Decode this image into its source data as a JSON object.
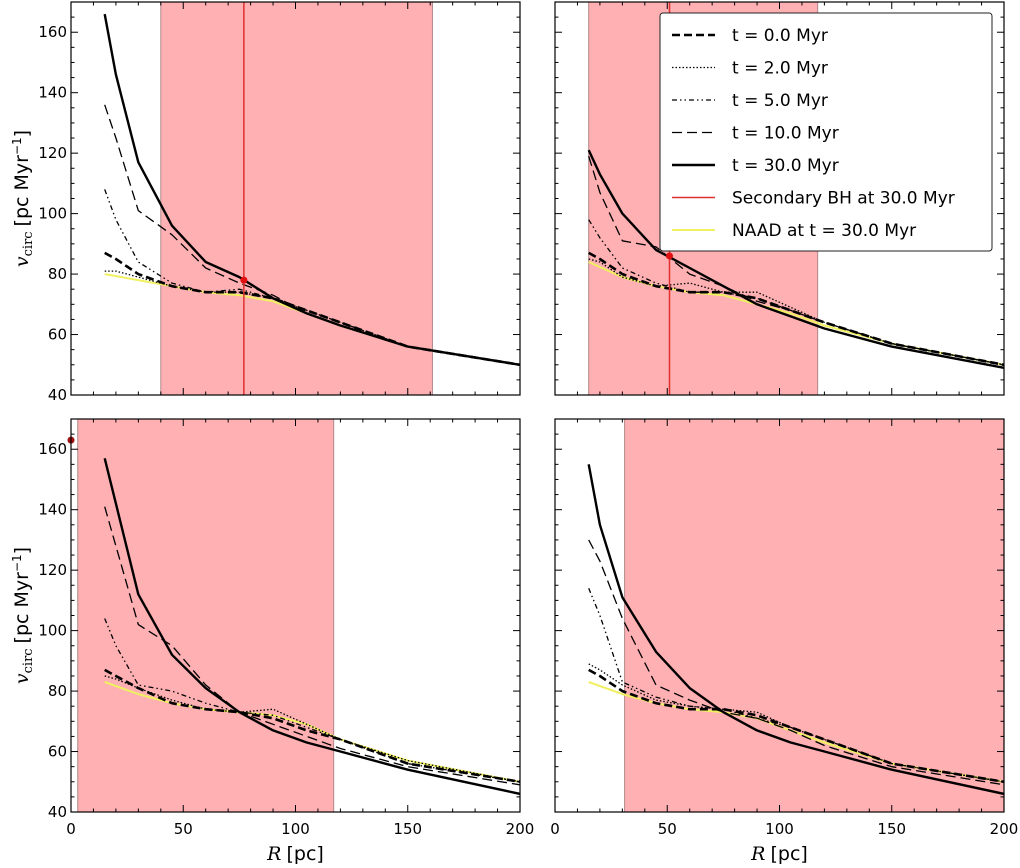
{
  "chart_data": {
    "type": "line",
    "layout": "2x2 grid",
    "xlabel_parts": [
      "R",
      "[pc]"
    ],
    "ylabel_parts": [
      "v",
      "circ",
      "[pc Myr",
      "−1",
      "]"
    ],
    "xlim": [
      0,
      200
    ],
    "ylim": [
      40,
      170
    ],
    "xticks": [
      "0",
      "50",
      "100",
      "150",
      "200"
    ],
    "yticks": [
      "40",
      "60",
      "80",
      "100",
      "120",
      "140",
      "160"
    ],
    "legend": {
      "placement": "top-right of upper-right panel",
      "entries": [
        {
          "series": "t0",
          "prefix": "t = 0.0",
          "suffix": "Myr",
          "color": "#000000",
          "dash": "8,4",
          "width": 2.6
        },
        {
          "series": "t2",
          "prefix": "t = 2.0",
          "suffix": "Myr",
          "color": "#000000",
          "dash": "1.5,2",
          "width": 1.3
        },
        {
          "series": "t5",
          "prefix": "t = 5.0",
          "suffix": "Myr",
          "color": "#000000",
          "dash": "5,3,1.5,3,1.5,3",
          "width": 1.3
        },
        {
          "series": "t10",
          "prefix": "t = 10.0",
          "suffix": "Myr",
          "color": "#000000",
          "dash": "10,5",
          "width": 1.3
        },
        {
          "series": "t30",
          "prefix": "t = 30.0",
          "suffix": "Myr",
          "color": "#000000",
          "dash": "",
          "width": 2.4
        },
        {
          "series": "bh",
          "prefix": "Secondary BH at 30.0",
          "suffix": "Myr",
          "color": "#e03030",
          "dash": "",
          "width": 1.5
        },
        {
          "series": "naad",
          "prefix": "NAAD at t = 30.0",
          "suffix": "Myr",
          "color": "#f0f060",
          "dash": "",
          "width": 2
        }
      ]
    },
    "colors": {
      "shade": "#ffb0b3",
      "shade_edge": "#b08888",
      "bh": "#e03030",
      "bh_marker": "#e01010",
      "bh_marker_dark": "#a01010",
      "naad": "#f0f060"
    },
    "panels": [
      {
        "position": "top-left",
        "shaded_range_pc": [
          40,
          161
        ],
        "bh": {
          "r_pc": 77,
          "v": 78,
          "line": true
        },
        "series": {
          "t0": {
            "x": [
              15,
              20,
              30,
              45,
              60,
              75,
              90,
              105,
              120,
              150,
              200
            ],
            "y": [
              87,
              85,
              80,
              76,
              74,
              74,
              72,
              68,
              64,
              56,
              50
            ]
          },
          "t2": {
            "x": [
              15,
              20,
              30,
              45,
              60,
              75,
              90,
              105,
              120,
              150,
              200
            ],
            "y": [
              81,
              81,
              79,
              76,
              74,
              74,
              72,
              68,
              64,
              56,
              50
            ]
          },
          "t5": {
            "x": [
              15,
              20,
              30,
              45,
              60,
              75,
              90,
              105,
              120,
              150,
              200
            ],
            "y": [
              108,
              98,
              84,
              77,
              74,
              75,
              72,
              68,
              64,
              56,
              50
            ]
          },
          "t10": {
            "x": [
              15,
              20,
              30,
              45,
              60,
              75,
              90,
              105,
              120,
              150,
              200
            ],
            "y": [
              136,
              125,
              101,
              93,
              82,
              77,
              73,
              67,
              63,
              56,
              50
            ]
          },
          "t30": {
            "x": [
              15,
              20,
              30,
              45,
              60,
              75,
              90,
              105,
              120,
              150,
              200
            ],
            "y": [
              166,
              146,
              117,
              96,
              84,
              79,
              72,
              67,
              63,
              56,
              50
            ]
          },
          "naad": {
            "x": [
              15,
              30,
              45,
              60,
              75,
              90,
              105,
              120,
              150,
              200
            ],
            "y": [
              80,
              78,
              76,
              74,
              73,
              71,
              67,
              63,
              56,
              50
            ]
          }
        }
      },
      {
        "position": "top-right",
        "shaded_range_pc": [
          15,
          117
        ],
        "bh": {
          "r_pc": 51,
          "v": 86,
          "line": true
        },
        "series": {
          "t0": {
            "x": [
              15,
              20,
              30,
              45,
              60,
              75,
              90,
              105,
              120,
              150,
              200
            ],
            "y": [
              87,
              85,
              80,
              76,
              74,
              74,
              72,
              68,
              64,
              57,
              50
            ]
          },
          "t2": {
            "x": [
              15,
              20,
              30,
              45,
              60,
              75,
              90,
              105,
              120,
              150,
              200
            ],
            "y": [
              85,
              84,
              79,
              76,
              77,
              74,
              74,
              69,
              64,
              57,
              50
            ]
          },
          "t5": {
            "x": [
              15,
              20,
              30,
              45,
              60,
              75,
              90,
              105,
              120,
              150,
              200
            ],
            "y": [
              98,
              92,
              82,
              77,
              74,
              74,
              72,
              68,
              64,
              57,
              50
            ]
          },
          "t10": {
            "x": [
              15,
              20,
              30,
              45,
              60,
              75,
              90,
              105,
              120,
              150,
              200
            ],
            "y": [
              119,
              107,
              91,
              89,
              80,
              76,
              71,
              68,
              64,
              57,
              50
            ]
          },
          "t30": {
            "x": [
              15,
              20,
              30,
              45,
              60,
              75,
              90,
              105,
              120,
              150,
              200
            ],
            "y": [
              121,
              113,
              100,
              88,
              82,
              76,
              70,
              66,
              62,
              56,
              49
            ]
          },
          "naad": {
            "x": [
              15,
              30,
              45,
              60,
              75,
              90,
              105,
              120,
              150,
              200
            ],
            "y": [
              84,
              79,
              76,
              74,
              73,
              70,
              67,
              63,
              57,
              50
            ]
          }
        }
      },
      {
        "position": "bottom-left",
        "shaded_range_pc": [
          3,
          117
        ],
        "bh": {
          "r_pc": 0,
          "v": 163,
          "line": false
        },
        "series": {
          "t0": {
            "x": [
              15,
              20,
              30,
              45,
              60,
              75,
              90,
              105,
              120,
              150,
              200
            ],
            "y": [
              87,
              85,
              81,
              76,
              74,
              73,
              71,
              67,
              64,
              56,
              50
            ]
          },
          "t2": {
            "x": [
              15,
              20,
              30,
              45,
              60,
              75,
              90,
              105,
              120,
              150,
              200
            ],
            "y": [
              85,
              84,
              81,
              77,
              74,
              73,
              74,
              69,
              64,
              57,
              50
            ]
          },
          "t5": {
            "x": [
              15,
              20,
              30,
              45,
              60,
              75,
              90,
              105,
              120,
              150,
              200
            ],
            "y": [
              104,
              95,
              82,
              80,
              76,
              73,
              72,
              68,
              64,
              56,
              50
            ]
          },
          "t10": {
            "x": [
              15,
              20,
              30,
              45,
              60,
              75,
              90,
              105,
              120,
              150,
              200
            ],
            "y": [
              141,
              128,
              102,
              95,
              82,
              73,
              69,
              65,
              61,
              55,
              49
            ]
          },
          "t30": {
            "x": [
              15,
              20,
              30,
              45,
              60,
              75,
              90,
              105,
              120,
              150,
              200
            ],
            "y": [
              157,
              142,
              112,
              92,
              81,
              73,
              67,
              63,
              60,
              54,
              46
            ]
          },
          "naad": {
            "x": [
              15,
              30,
              45,
              60,
              75,
              90,
              105,
              120,
              150,
              200
            ],
            "y": [
              83,
              79,
              76,
              74,
              73,
              72,
              69,
              64,
              57,
              50
            ]
          }
        }
      },
      {
        "position": "bottom-right",
        "shaded_range_pc": [
          31,
          200
        ],
        "bh": null,
        "series": {
          "t0": {
            "x": [
              15,
              20,
              30,
              45,
              60,
              75,
              90,
              105,
              120,
              150,
              200
            ],
            "y": [
              87,
              85,
              80,
              76,
              74,
              74,
              72,
              68,
              64,
              56,
              50
            ]
          },
          "t2": {
            "x": [
              15,
              20,
              30,
              45,
              60,
              75,
              90,
              105,
              120,
              150,
              200
            ],
            "y": [
              89,
              87,
              82,
              77,
              75,
              74,
              73,
              68,
              64,
              56,
              50
            ]
          },
          "t5": {
            "x": [
              15,
              20,
              30,
              45,
              60,
              75,
              90,
              105,
              120,
              150,
              200
            ],
            "y": [
              114,
              105,
              83,
              78,
              75,
              74,
              71,
              68,
              64,
              56,
              50
            ]
          },
          "t10": {
            "x": [
              15,
              20,
              30,
              45,
              60,
              75,
              90,
              105,
              120,
              150,
              200
            ],
            "y": [
              130,
              123,
              104,
              82,
              77,
              73,
              71,
              67,
              62,
              55,
              49
            ]
          },
          "t30": {
            "x": [
              15,
              20,
              30,
              45,
              60,
              75,
              90,
              105,
              120,
              150,
              200
            ],
            "y": [
              155,
              135,
              111,
              93,
              81,
              73,
              67,
              63,
              60,
              54,
              46
            ]
          },
          "naad": {
            "x": [
              15,
              30,
              45,
              60,
              75,
              90,
              105,
              120,
              150,
              200
            ],
            "y": [
              83,
              79,
              76,
              74,
              73,
              71,
              67,
              63,
              56,
              50
            ]
          }
        }
      }
    ]
  }
}
